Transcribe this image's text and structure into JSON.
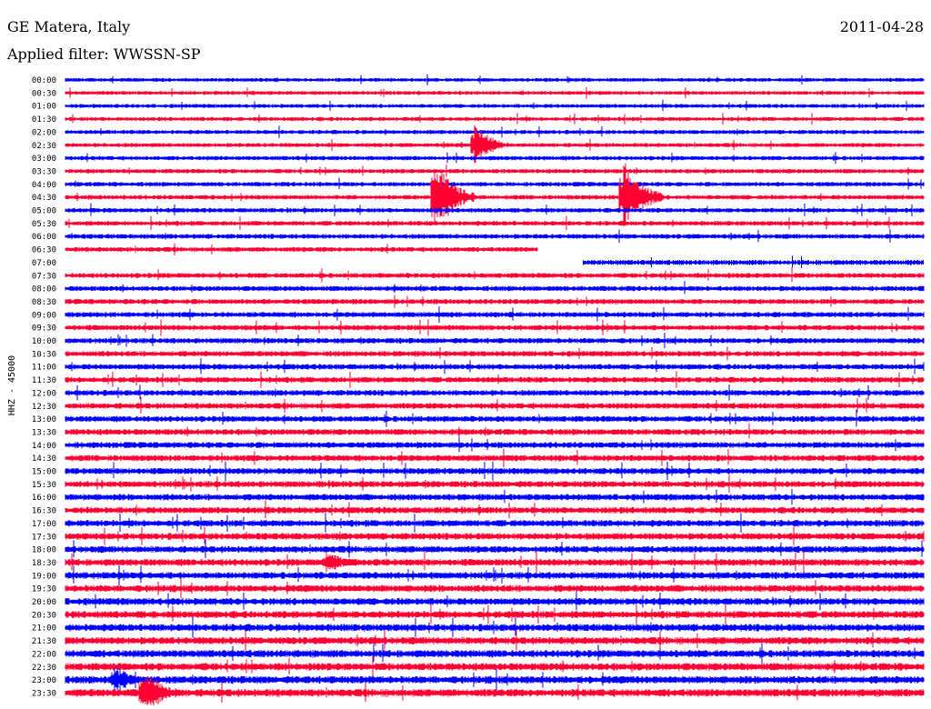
{
  "header": {
    "station": "GE Matera, Italy",
    "filter": "Applied filter: WWSSN-SP",
    "date": "2011-04-28"
  },
  "chart_data": {
    "type": "line",
    "ylabel": "HHZ - 45000",
    "colors": {
      "even": "#0000ff",
      "odd": "#ff0033"
    },
    "rows": [
      "00:00",
      "00:30",
      "01:00",
      "01:30",
      "02:00",
      "02:30",
      "03:00",
      "03:30",
      "04:00",
      "04:30",
      "05:00",
      "05:30",
      "06:00",
      "06:30",
      "07:00",
      "07:30",
      "08:00",
      "08:30",
      "09:00",
      "09:30",
      "10:00",
      "10:30",
      "11:00",
      "11:30",
      "12:00",
      "12:30",
      "13:00",
      "13:30",
      "14:00",
      "14:30",
      "15:00",
      "15:30",
      "16:00",
      "16:30",
      "17:00",
      "17:30",
      "18:00",
      "18:30",
      "19:00",
      "19:30",
      "20:00",
      "20:30",
      "21:00",
      "21:30",
      "22:00",
      "22:30",
      "23:00",
      "23:30"
    ],
    "x_range_minutes": [
      0,
      30
    ],
    "gap": {
      "row": "06:30",
      "start_minute": 16.5,
      "end_minute": 30
    },
    "gap_next": {
      "row": "07:00",
      "start_minute": 0,
      "end_minute": 18.1
    },
    "events": [
      {
        "row": "02:30",
        "minute": 14.3,
        "amplitude": 26,
        "duration_min": 1.2
      },
      {
        "row": "04:30",
        "minute": 12.9,
        "amplitude": 45,
        "duration_min": 1.4
      },
      {
        "row": "04:30",
        "minute": 19.5,
        "amplitude": 45,
        "duration_min": 1.4
      },
      {
        "row": "18:30",
        "minute": 9.1,
        "amplitude": 12,
        "duration_min": 1.8
      },
      {
        "row": "23:00",
        "minute": 1.7,
        "amplitude": 18,
        "duration_min": 1.3
      },
      {
        "row": "23:30",
        "minute": 2.7,
        "amplitude": 30,
        "duration_min": 1.5
      }
    ]
  }
}
